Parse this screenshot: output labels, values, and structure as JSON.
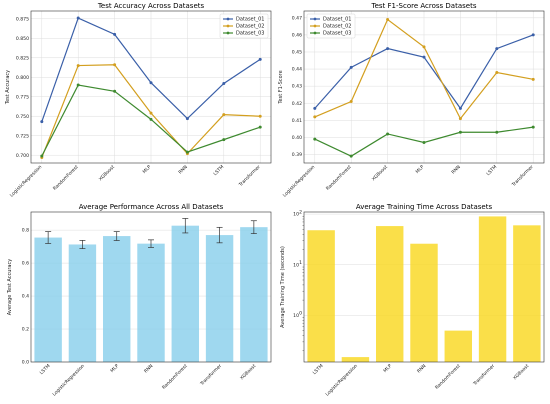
{
  "chart_data": [
    {
      "type": "line",
      "title": "Test Accuracy Across Datasets",
      "xlabel": "",
      "ylabel": "Test Accuracy",
      "categories": [
        "LogisticRegression",
        "RandomForest",
        "XGBoost",
        "MLP",
        "RNN",
        "LSTM",
        "Transformer"
      ],
      "ylim": [
        0.69,
        0.885
      ],
      "yticks": [
        "0.700",
        "0.725",
        "0.750",
        "0.775",
        "0.800",
        "0.825",
        "0.850",
        "0.875"
      ],
      "grid": true,
      "legend": "top-right",
      "series": [
        {
          "name": "Dataset_01",
          "color": "#3a5fa8",
          "marker": "circle",
          "values": [
            0.743,
            0.876,
            0.855,
            0.793,
            0.747,
            0.792,
            0.823
          ]
        },
        {
          "name": "Dataset_02",
          "color": "#d39f1f",
          "marker": "circle",
          "values": [
            0.697,
            0.815,
            0.816,
            0.754,
            0.702,
            0.752,
            0.75
          ]
        },
        {
          "name": "Dataset_03",
          "color": "#3e8a2f",
          "marker": "circle",
          "values": [
            0.699,
            0.79,
            0.782,
            0.746,
            0.704,
            0.72,
            0.736
          ]
        }
      ]
    },
    {
      "type": "line",
      "title": "Test F1-Score Across Datasets",
      "xlabel": "",
      "ylabel": "Test F1-Score",
      "categories": [
        "LogisticRegression",
        "RandomForest",
        "XGBoost",
        "MLP",
        "RNN",
        "LSTM",
        "Transformer"
      ],
      "ylim": [
        0.385,
        0.474
      ],
      "yticks": [
        "0.39",
        "0.40",
        "0.41",
        "0.42",
        "0.43",
        "0.44",
        "0.45",
        "0.46",
        "0.47"
      ],
      "grid": true,
      "legend": "top-left",
      "series": [
        {
          "name": "Dataset_01",
          "color": "#3a5fa8",
          "marker": "circle",
          "values": [
            0.417,
            0.441,
            0.452,
            0.447,
            0.417,
            0.452,
            0.46
          ]
        },
        {
          "name": "Dataset_02",
          "color": "#d39f1f",
          "marker": "circle",
          "values": [
            0.412,
            0.421,
            0.469,
            0.453,
            0.411,
            0.438,
            0.434
          ]
        },
        {
          "name": "Dataset_03",
          "color": "#3e8a2f",
          "marker": "circle",
          "values": [
            0.399,
            0.389,
            0.402,
            0.397,
            0.403,
            0.403,
            0.406
          ]
        }
      ]
    },
    {
      "type": "bar",
      "title": "Average Performance Across All Datasets",
      "xlabel": "",
      "ylabel": "Average Test Accuracy",
      "categories": [
        "LSTM",
        "LogisticRegression",
        "MLP",
        "RNN",
        "RandomForest",
        "Transformer",
        "XGBoost"
      ],
      "values": [
        0.755,
        0.713,
        0.764,
        0.718,
        0.827,
        0.77,
        0.818
      ],
      "errors": [
        0.036,
        0.025,
        0.027,
        0.023,
        0.044,
        0.047,
        0.039
      ],
      "ylim": [
        0,
        0.91
      ],
      "yticks": [
        "0.0",
        "0.2",
        "0.4",
        "0.6",
        "0.8"
      ],
      "grid": true,
      "color": "#87ceeb"
    },
    {
      "type": "bar",
      "title": "Average Training Time Across Datasets",
      "xlabel": "",
      "ylabel": "Average Training Time (seconds)",
      "categories": [
        "LSTM",
        "LogisticRegression",
        "MLP",
        "RNN",
        "RandomForest",
        "Transformer",
        "XGBoost"
      ],
      "values": [
        48,
        0.15,
        58,
        26,
        0.5,
        90,
        60
      ],
      "yscale": "log",
      "ylim": [
        0.12,
        110
      ],
      "yticks": [
        {
          "value": 1,
          "base": "10",
          "exp": "0"
        },
        {
          "value": 10,
          "base": "10",
          "exp": "1"
        },
        {
          "value": 100,
          "base": "10",
          "exp": "2"
        }
      ],
      "grid": true,
      "color": "#f9d71c"
    }
  ]
}
